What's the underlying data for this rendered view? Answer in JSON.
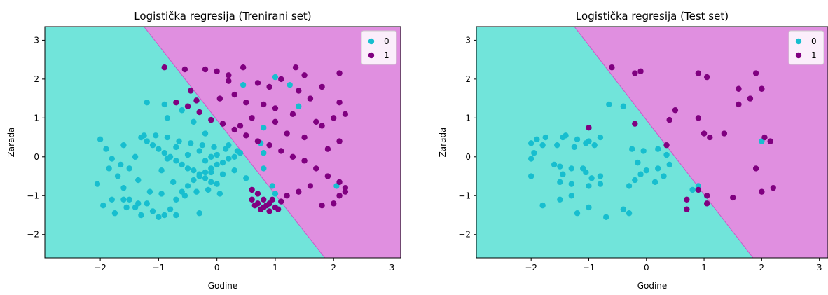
{
  "colors": {
    "region_0": "#71e4da",
    "region_1": "#e08fe0",
    "point_0": "#17becf",
    "point_1": "#800080",
    "boundary": "#c85ac8"
  },
  "chart_data": [
    {
      "type": "scatter",
      "title": "Logistička regresija (Trenirani set)",
      "xlabel": "Godine",
      "ylabel": "Zarada",
      "xlim": [
        -2.95,
        3.15
      ],
      "ylim": [
        -2.6,
        3.35
      ],
      "xticks": [
        -2,
        -1,
        0,
        1,
        2,
        3
      ],
      "yticks": [
        -2,
        -1,
        0,
        1,
        2,
        3
      ],
      "grid": false,
      "legend_position": "top-right",
      "decision_boundary": [
        [
          -1.25,
          3.35
        ],
        [
          1.85,
          -2.6
        ]
      ],
      "series": [
        {
          "name": "0",
          "points": [
            [
              -2.0,
              0.45
            ],
            [
              -1.9,
              0.2
            ],
            [
              -1.8,
              -0.05
            ],
            [
              -1.85,
              -0.3
            ],
            [
              -1.7,
              -0.5
            ],
            [
              -1.6,
              -0.8
            ],
            [
              -1.5,
              -1.1
            ],
            [
              -1.4,
              -1.3
            ],
            [
              -1.3,
              -1.5
            ],
            [
              -1.2,
              -1.2
            ],
            [
              -1.1,
              -1.4
            ],
            [
              -1.0,
              -1.55
            ],
            [
              -0.9,
              -1.5
            ],
            [
              -0.8,
              -1.35
            ],
            [
              -0.7,
              -1.1
            ],
            [
              -0.6,
              -0.9
            ],
            [
              -0.5,
              -0.75
            ],
            [
              -0.4,
              -0.6
            ],
            [
              -0.3,
              -0.5
            ],
            [
              -0.2,
              -0.4
            ],
            [
              -0.1,
              -0.3
            ],
            [
              0.0,
              -0.2
            ],
            [
              0.1,
              -0.15
            ],
            [
              0.2,
              -0.05
            ],
            [
              0.3,
              0.0
            ],
            [
              0.4,
              0.1
            ],
            [
              -1.3,
              0.5
            ],
            [
              -1.2,
              0.4
            ],
            [
              -1.1,
              0.3
            ],
            [
              -1.0,
              0.2
            ],
            [
              -0.9,
              0.1
            ],
            [
              -0.8,
              0.0
            ],
            [
              -0.7,
              -0.1
            ],
            [
              -0.6,
              -0.2
            ],
            [
              -0.5,
              -0.3
            ],
            [
              -0.4,
              -0.35
            ],
            [
              -0.3,
              -0.45
            ],
            [
              -0.2,
              -0.55
            ],
            [
              -0.1,
              -0.65
            ],
            [
              0.0,
              -0.7
            ],
            [
              -1.25,
              0.55
            ],
            [
              -1.05,
              0.55
            ],
            [
              -0.85,
              0.5
            ],
            [
              -0.65,
              0.4
            ],
            [
              -0.45,
              0.35
            ],
            [
              -0.25,
              0.3
            ],
            [
              -0.05,
              0.25
            ],
            [
              0.15,
              0.2
            ],
            [
              0.35,
              0.15
            ],
            [
              -1.6,
              0.3
            ],
            [
              -1.5,
              -0.3
            ],
            [
              -1.4,
              0.0
            ],
            [
              -1.35,
              -0.6
            ],
            [
              -1.15,
              -0.9
            ],
            [
              -0.95,
              -0.95
            ],
            [
              -0.75,
              -0.65
            ],
            [
              -0.55,
              -1.0
            ],
            [
              -0.35,
              -0.9
            ],
            [
              -0.15,
              -0.85
            ],
            [
              0.05,
              -0.95
            ],
            [
              -2.05,
              -0.7
            ],
            [
              -1.95,
              -1.25
            ],
            [
              -1.75,
              -1.45
            ],
            [
              -1.55,
              -1.3
            ],
            [
              -1.35,
              -1.2
            ],
            [
              -0.95,
              -0.35
            ],
            [
              -0.85,
              -0.05
            ],
            [
              -0.7,
              0.25
            ],
            [
              -0.5,
              0.05
            ],
            [
              -0.3,
              0.15
            ],
            [
              -0.1,
              0.0
            ],
            [
              0.1,
              -0.45
            ],
            [
              0.3,
              -0.35
            ],
            [
              0.5,
              -0.55
            ],
            [
              -1.2,
              1.4
            ],
            [
              -0.9,
              1.35
            ],
            [
              -0.6,
              1.2
            ],
            [
              -0.4,
              0.9
            ],
            [
              -0.2,
              0.6
            ],
            [
              -0.85,
              1.0
            ],
            [
              0.45,
              1.85
            ],
            [
              1.0,
              2.05
            ],
            [
              1.25,
              1.85
            ],
            [
              1.4,
              1.3
            ],
            [
              0.8,
              0.75
            ],
            [
              0.75,
              0.35
            ],
            [
              0.8,
              -0.3
            ],
            [
              0.95,
              -0.75
            ],
            [
              1.0,
              -0.95
            ],
            [
              2.05,
              -0.75
            ],
            [
              0.8,
              0.1
            ],
            [
              -1.6,
              -1.1
            ],
            [
              -0.7,
              -1.5
            ],
            [
              -0.3,
              -1.45
            ],
            [
              -0.2,
              -0.1
            ],
            [
              0.0,
              0.05
            ],
            [
              0.2,
              0.3
            ],
            [
              -0.1,
              -0.4
            ],
            [
              -1.8,
              -1.1
            ],
            [
              -1.65,
              -0.2
            ]
          ]
        },
        {
          "name": "1",
          "points": [
            [
              -0.9,
              2.3
            ],
            [
              -0.55,
              2.25
            ],
            [
              -0.2,
              2.25
            ],
            [
              0.0,
              2.2
            ],
            [
              0.2,
              2.1
            ],
            [
              0.45,
              2.3
            ],
            [
              0.7,
              1.9
            ],
            [
              0.9,
              1.8
            ],
            [
              1.1,
              2.0
            ],
            [
              1.35,
              2.3
            ],
            [
              1.5,
              2.1
            ],
            [
              2.1,
              2.15
            ],
            [
              1.4,
              1.7
            ],
            [
              1.6,
              1.5
            ],
            [
              1.8,
              1.8
            ],
            [
              2.1,
              1.4
            ],
            [
              0.3,
              1.6
            ],
            [
              0.5,
              1.4
            ],
            [
              0.8,
              1.35
            ],
            [
              1.0,
              1.25
            ],
            [
              -0.7,
              1.4
            ],
            [
              -0.5,
              1.3
            ],
            [
              -0.3,
              1.15
            ],
            [
              -0.1,
              0.95
            ],
            [
              0.1,
              0.85
            ],
            [
              0.3,
              0.7
            ],
            [
              0.5,
              0.55
            ],
            [
              0.7,
              0.4
            ],
            [
              0.9,
              0.3
            ],
            [
              1.1,
              0.15
            ],
            [
              1.3,
              0.0
            ],
            [
              1.5,
              -0.1
            ],
            [
              1.7,
              -0.3
            ],
            [
              1.9,
              -0.5
            ],
            [
              2.1,
              -0.65
            ],
            [
              2.2,
              -0.9
            ],
            [
              0.6,
              -0.85
            ],
            [
              0.7,
              -0.95
            ],
            [
              0.8,
              -1.1
            ],
            [
              0.9,
              -1.2
            ],
            [
              1.0,
              -1.3
            ],
            [
              1.1,
              -1.15
            ],
            [
              1.2,
              -1.0
            ],
            [
              0.65,
              -1.25
            ],
            [
              0.75,
              -1.35
            ],
            [
              0.85,
              -1.25
            ],
            [
              0.95,
              -1.1
            ],
            [
              1.05,
              -1.35
            ],
            [
              0.6,
              -1.1
            ],
            [
              0.7,
              -1.2
            ],
            [
              0.8,
              -1.3
            ],
            [
              0.9,
              -1.4
            ],
            [
              1.4,
              -0.9
            ],
            [
              1.6,
              -0.75
            ],
            [
              1.8,
              -1.25
            ],
            [
              2.0,
              -1.2
            ],
            [
              2.1,
              -1.0
            ],
            [
              2.2,
              -0.8
            ],
            [
              1.5,
              0.5
            ],
            [
              1.8,
              0.8
            ],
            [
              2.0,
              1.0
            ],
            [
              2.2,
              1.1
            ],
            [
              1.2,
              0.6
            ],
            [
              1.0,
              0.9
            ],
            [
              0.6,
              1.0
            ],
            [
              0.4,
              0.8
            ],
            [
              1.9,
              0.2
            ],
            [
              2.1,
              0.4
            ],
            [
              1.7,
              0.9
            ],
            [
              1.3,
              1.1
            ],
            [
              0.2,
              1.95
            ],
            [
              -0.45,
              1.7
            ],
            [
              0.05,
              1.5
            ],
            [
              -0.35,
              1.45
            ]
          ]
        }
      ]
    },
    {
      "type": "scatter",
      "title": "Logistička regresija (Test set)",
      "xlabel": "Godine",
      "ylabel": "Zarada",
      "xlim": [
        -2.95,
        3.15
      ],
      "ylim": [
        -2.6,
        3.35
      ],
      "xticks": [
        -2,
        -1,
        0,
        1,
        2,
        3
      ],
      "yticks": [
        -2,
        -1,
        0,
        1,
        2,
        3
      ],
      "grid": false,
      "legend_position": "top-right",
      "decision_boundary": [
        [
          -1.25,
          3.35
        ],
        [
          1.85,
          -2.6
        ]
      ],
      "series": [
        {
          "name": "0",
          "points": [
            [
              -2.0,
              0.35
            ],
            [
              -1.9,
              0.45
            ],
            [
              -1.75,
              0.5
            ],
            [
              -1.55,
              0.3
            ],
            [
              -1.4,
              0.55
            ],
            [
              -1.2,
              0.45
            ],
            [
              -1.0,
              0.4
            ],
            [
              -0.8,
              0.5
            ],
            [
              -2.0,
              -0.05
            ],
            [
              -2.0,
              -0.5
            ],
            [
              -1.95,
              0.1
            ],
            [
              -1.8,
              0.3
            ],
            [
              -1.6,
              -0.2
            ],
            [
              -1.5,
              -0.25
            ],
            [
              -1.45,
              -0.45
            ],
            [
              -1.3,
              -0.3
            ],
            [
              -1.1,
              -0.3
            ],
            [
              -1.05,
              -0.4
            ],
            [
              -0.95,
              -0.55
            ],
            [
              -0.8,
              -0.5
            ],
            [
              -0.8,
              -0.7
            ],
            [
              -1.0,
              -0.75
            ],
            [
              -1.3,
              -0.7
            ],
            [
              -1.5,
              -0.65
            ],
            [
              -1.8,
              -1.25
            ],
            [
              -1.5,
              -1.1
            ],
            [
              -1.3,
              -1.0
            ],
            [
              -1.2,
              -1.45
            ],
            [
              -1.0,
              -1.3
            ],
            [
              -0.7,
              -1.55
            ],
            [
              -0.4,
              -1.35
            ],
            [
              -0.3,
              -1.45
            ],
            [
              -0.3,
              -0.75
            ],
            [
              -0.2,
              -0.6
            ],
            [
              -0.1,
              -0.45
            ],
            [
              0.0,
              -0.35
            ],
            [
              0.2,
              -0.3
            ],
            [
              0.3,
              -0.5
            ],
            [
              0.4,
              -0.2
            ],
            [
              0.2,
              0.2
            ],
            [
              0.35,
              0.05
            ],
            [
              -0.05,
              0.15
            ],
            [
              -0.25,
              0.2
            ],
            [
              -1.05,
              0.35
            ],
            [
              -0.9,
              0.3
            ],
            [
              -0.65,
              1.35
            ],
            [
              -0.4,
              1.3
            ],
            [
              0.9,
              -0.75
            ],
            [
              0.8,
              -0.85
            ],
            [
              2.0,
              0.4
            ],
            [
              -1.45,
              0.5
            ],
            [
              -1.25,
              0.25
            ],
            [
              -0.15,
              -0.15
            ],
            [
              0.15,
              -0.65
            ]
          ]
        },
        {
          "name": "1",
          "points": [
            [
              -0.6,
              2.3
            ],
            [
              -0.2,
              2.15
            ],
            [
              -0.1,
              2.2
            ],
            [
              0.9,
              2.15
            ],
            [
              1.05,
              2.05
            ],
            [
              1.6,
              1.75
            ],
            [
              1.8,
              1.5
            ],
            [
              1.9,
              2.15
            ],
            [
              2.0,
              1.75
            ],
            [
              1.6,
              1.35
            ],
            [
              -1.0,
              0.75
            ],
            [
              0.4,
              0.95
            ],
            [
              0.5,
              1.2
            ],
            [
              0.9,
              1.0
            ],
            [
              1.0,
              0.6
            ],
            [
              1.1,
              0.5
            ],
            [
              1.35,
              0.6
            ],
            [
              2.05,
              0.5
            ],
            [
              2.15,
              0.4
            ],
            [
              -0.2,
              0.85
            ],
            [
              0.35,
              0.3
            ],
            [
              0.7,
              -1.1
            ],
            [
              0.7,
              -1.35
            ],
            [
              0.9,
              -0.85
            ],
            [
              1.05,
              -1.0
            ],
            [
              1.05,
              -1.2
            ],
            [
              1.5,
              -1.05
            ],
            [
              1.9,
              -0.3
            ],
            [
              2.0,
              -0.9
            ],
            [
              2.2,
              -0.8
            ]
          ]
        }
      ]
    }
  ]
}
